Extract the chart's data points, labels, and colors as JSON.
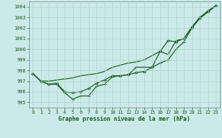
{
  "xlabel": "Graphe pression niveau de la mer (hPa)",
  "ylim": [
    994.5,
    1004.5
  ],
  "xlim": [
    -0.5,
    23.5
  ],
  "yticks": [
    995,
    996,
    997,
    998,
    999,
    1000,
    1001,
    1002,
    1003,
    1004
  ],
  "xticks": [
    0,
    1,
    2,
    3,
    4,
    5,
    6,
    7,
    8,
    9,
    10,
    11,
    12,
    13,
    14,
    15,
    16,
    17,
    18,
    19,
    20,
    21,
    22,
    23
  ],
  "background_color": "#cce9e9",
  "line_color": "#1a5c1a",
  "grid_color": "#aad4cc",
  "series": {
    "line_upper_x": [
      0,
      1,
      2,
      3,
      4,
      5,
      6,
      7,
      8,
      9,
      10,
      11,
      12,
      13,
      14,
      15,
      16,
      17,
      18,
      19,
      20,
      21,
      22,
      23
    ],
    "line_upper_y": [
      997.7,
      997.0,
      997.0,
      997.1,
      997.2,
      997.3,
      997.5,
      997.6,
      997.7,
      997.9,
      998.3,
      998.5,
      998.7,
      998.8,
      999.0,
      999.4,
      999.8,
      999.5,
      1000.8,
      1001.0,
      1002.1,
      1003.0,
      1003.5,
      1004.1
    ],
    "line_mid_x": [
      0,
      1,
      2,
      3,
      4,
      5,
      6,
      7,
      8,
      9,
      10,
      11,
      12,
      13,
      14,
      15,
      16,
      17,
      18,
      19,
      20,
      21,
      22,
      23
    ],
    "line_mid_y": [
      997.7,
      997.0,
      996.7,
      996.8,
      996.0,
      995.9,
      996.0,
      996.3,
      996.8,
      997.1,
      997.5,
      997.5,
      997.6,
      997.8,
      997.9,
      998.3,
      999.8,
      1000.8,
      1000.7,
      1001.0,
      1002.1,
      1003.0,
      1003.6,
      1004.1
    ],
    "line_lower_x": [
      0,
      1,
      2,
      3,
      4,
      5,
      6,
      7,
      8,
      9,
      10,
      11,
      12,
      13,
      14,
      15,
      16,
      17,
      18,
      19,
      20,
      21,
      22,
      23
    ],
    "line_lower_y": [
      997.7,
      997.0,
      996.7,
      996.7,
      995.9,
      995.3,
      995.6,
      995.6,
      996.5,
      996.7,
      997.4,
      997.5,
      997.6,
      998.3,
      998.3,
      998.3,
      998.7,
      999.0,
      1000.0,
      1000.7,
      1002.0,
      1002.9,
      1003.5,
      1004.1
    ]
  }
}
